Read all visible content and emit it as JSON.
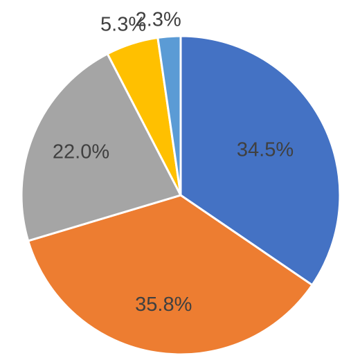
{
  "chart_data": {
    "type": "pie",
    "title": "",
    "start_angle_deg": 0,
    "direction": "clockwise",
    "slices": [
      {
        "value": 34.5,
        "label": "34.5%",
        "color": "#4472C4"
      },
      {
        "value": 35.8,
        "label": "35.8%",
        "color": "#ED7D31"
      },
      {
        "value": 22.0,
        "label": "22.0%",
        "color": "#A5A5A5"
      },
      {
        "value": 5.3,
        "label": "5.3%",
        "color": "#FFC000"
      },
      {
        "value": 2.3,
        "label": "2.3%",
        "color": "#5B9BD5"
      }
    ],
    "legend": "none"
  }
}
